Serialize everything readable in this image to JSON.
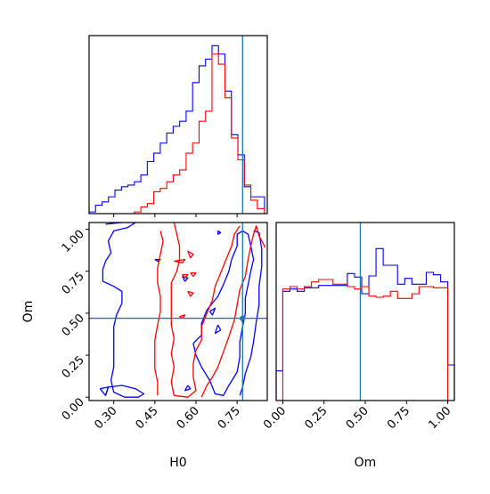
{
  "chart_data": [
    {
      "panel": "H0 marginal",
      "type": "histogram",
      "xlabel": "",
      "ylabel": "",
      "xlim": [
        0.21,
        0.86
      ],
      "ylim": [
        0,
        1.06
      ],
      "truth_x": 0.77,
      "bin_edges": [
        0.21,
        0.2336,
        0.2572,
        0.2808,
        0.3044,
        0.328,
        0.3516,
        0.3752,
        0.3988,
        0.4224,
        0.446,
        0.4696,
        0.4932,
        0.5168,
        0.5404,
        0.564,
        0.5876,
        0.6112,
        0.6348,
        0.6584,
        0.682,
        0.7056,
        0.7292,
        0.7528,
        0.7764,
        0.8,
        0.8236,
        0.85
      ],
      "series": [
        {
          "color": "#0000ff",
          "values": [
            0.01,
            0.05,
            0.07,
            0.1,
            0.14,
            0.16,
            0.17,
            0.19,
            0.23,
            0.31,
            0.36,
            0.42,
            0.48,
            0.52,
            0.55,
            0.61,
            0.78,
            0.88,
            0.92,
            1.0,
            0.95,
            0.73,
            0.47,
            0.35,
            0.16,
            0.1,
            0.1
          ]
        },
        {
          "color": "#ff0000",
          "values": [
            0,
            0,
            0,
            0,
            0,
            0,
            0,
            0.01,
            0.04,
            0.06,
            0.13,
            0.15,
            0.19,
            0.23,
            0.26,
            0.36,
            0.42,
            0.55,
            0.61,
            0.95,
            0.89,
            0.69,
            0.45,
            0.32,
            0.17,
            0.08,
            0.03
          ]
        }
      ]
    },
    {
      "panel": "H0 vs Om contour",
      "type": "contour",
      "xlabel": "H0",
      "ylabel": "Om",
      "xlim": [
        0.21,
        0.86
      ],
      "ylim": [
        -0.02,
        1.04
      ],
      "truth_x": 0.77,
      "truth_y": 0.47,
      "x_ticks": [
        "0.30",
        "0.45",
        "0.60",
        "0.75"
      ],
      "x_tick_values": [
        0.3,
        0.45,
        0.6,
        0.75
      ],
      "y_ticks": [
        "0.00",
        "0.25",
        "0.50",
        "0.75",
        "1.00"
      ],
      "y_tick_values": [
        0.0,
        0.25,
        0.5,
        0.75,
        1.0
      ],
      "series": [
        {
          "color": "#0000ff",
          "contours": [
            [
              [
                0.27,
                1.03
              ],
              [
                0.33,
                1.04
              ],
              [
                0.38,
                1.04
              ],
              [
                0.35,
                1.01
              ],
              [
                0.3,
                0.99
              ],
              [
                0.28,
                0.93
              ],
              [
                0.29,
                0.86
              ],
              [
                0.27,
                0.81
              ],
              [
                0.26,
                0.76
              ],
              [
                0.26,
                0.69
              ],
              [
                0.3,
                0.66
              ],
              [
                0.33,
                0.63
              ],
              [
                0.33,
                0.56
              ],
              [
                0.31,
                0.49
              ],
              [
                0.3,
                0.42
              ],
              [
                0.3,
                0.34
              ],
              [
                0.3,
                0.26
              ],
              [
                0.3,
                0.18
              ],
              [
                0.29,
                0.1
              ],
              [
                0.3,
                0.03
              ],
              [
                0.34,
                0.0
              ],
              [
                0.39,
                0.0
              ],
              [
                0.41,
                0.02
              ],
              [
                0.38,
                0.05
              ],
              [
                0.33,
                0.07
              ],
              [
                0.28,
                0.06
              ],
              [
                0.27,
                0.01
              ]
            ],
            [
              [
                0.25,
                0.05
              ],
              [
                0.28,
                0.06
              ],
              [
                0.27,
                0.01
              ],
              [
                0.25,
                0.05
              ]
            ],
            [
              [
                0.59,
                0.32
              ],
              [
                0.62,
                0.37
              ],
              [
                0.62,
                0.44
              ],
              [
                0.64,
                0.52
              ],
              [
                0.68,
                0.6
              ],
              [
                0.7,
                0.67
              ],
              [
                0.72,
                0.75
              ],
              [
                0.73,
                0.82
              ],
              [
                0.75,
                0.9
              ],
              [
                0.75,
                0.97
              ],
              [
                0.77,
                0.99
              ],
              [
                0.79,
                0.97
              ],
              [
                0.8,
                0.9
              ],
              [
                0.81,
                0.82
              ],
              [
                0.8,
                0.75
              ],
              [
                0.79,
                0.67
              ],
              [
                0.78,
                0.59
              ],
              [
                0.78,
                0.5
              ],
              [
                0.77,
                0.42
              ],
              [
                0.76,
                0.33
              ],
              [
                0.76,
                0.24
              ],
              [
                0.75,
                0.15
              ],
              [
                0.72,
                0.07
              ],
              [
                0.7,
                0.01
              ],
              [
                0.67,
                0.02
              ],
              [
                0.65,
                0.1
              ],
              [
                0.62,
                0.18
              ],
              [
                0.6,
                0.25
              ],
              [
                0.59,
                0.32
              ]
            ],
            [
              [
                0.81,
                0.99
              ],
              [
                0.83,
                0.98
              ],
              [
                0.84,
                0.88
              ],
              [
                0.84,
                0.78
              ],
              [
                0.83,
                0.66
              ],
              [
                0.83,
                0.55
              ],
              [
                0.82,
                0.45
              ],
              [
                0.81,
                0.33
              ],
              [
                0.8,
                0.24
              ],
              [
                0.78,
                0.14
              ],
              [
                0.77,
                0.06
              ],
              [
                0.76,
                0.01
              ]
            ],
            [
              [
                0.65,
                0.51
              ],
              [
                0.67,
                0.53
              ],
              [
                0.66,
                0.49
              ],
              [
                0.65,
                0.51
              ]
            ],
            [
              [
                0.76,
                0.47
              ],
              [
                0.77,
                0.48
              ],
              [
                0.77,
                0.45
              ],
              [
                0.76,
                0.47
              ]
            ],
            [
              [
                0.68,
                0.43
              ],
              [
                0.69,
                0.4
              ],
              [
                0.67,
                0.38
              ],
              [
                0.68,
                0.43
              ]
            ],
            [
              [
                0.55,
                0.72
              ],
              [
                0.57,
                0.71
              ],
              [
                0.56,
                0.69
              ],
              [
                0.55,
                0.72
              ]
            ],
            [
              [
                0.57,
                0.07
              ],
              [
                0.58,
                0.05
              ],
              [
                0.56,
                0.04
              ],
              [
                0.57,
                0.07
              ]
            ],
            [
              [
                0.68,
                0.99
              ],
              [
                0.69,
                0.98
              ],
              [
                0.68,
                0.97
              ],
              [
                0.68,
                0.99
              ]
            ],
            [
              [
                0.45,
                0.82
              ],
              [
                0.47,
                0.82
              ],
              [
                0.46,
                0.81
              ],
              [
                0.45,
                0.82
              ]
            ]
          ]
        },
        {
          "color": "#ff0000",
          "contours": [
            [
              [
                0.47,
                0.99
              ],
              [
                0.48,
                0.93
              ],
              [
                0.47,
                0.85
              ],
              [
                0.46,
                0.77
              ],
              [
                0.46,
                0.68
              ],
              [
                0.47,
                0.6
              ],
              [
                0.47,
                0.51
              ],
              [
                0.46,
                0.43
              ],
              [
                0.45,
                0.34
              ],
              [
                0.45,
                0.26
              ],
              [
                0.45,
                0.17
              ],
              [
                0.46,
                0.09
              ],
              [
                0.46,
                0.01
              ]
            ],
            [
              [
                0.52,
                1.04
              ],
              [
                0.53,
                0.97
              ],
              [
                0.54,
                0.9
              ],
              [
                0.54,
                0.82
              ],
              [
                0.53,
                0.75
              ],
              [
                0.51,
                0.68
              ],
              [
                0.51,
                0.6
              ],
              [
                0.51,
                0.51
              ],
              [
                0.51,
                0.43
              ],
              [
                0.52,
                0.35
              ],
              [
                0.51,
                0.26
              ],
              [
                0.52,
                0.18
              ],
              [
                0.51,
                0.09
              ],
              [
                0.52,
                0.01
              ],
              [
                0.57,
                0.0
              ],
              [
                0.6,
                0.04
              ],
              [
                0.59,
                0.12
              ],
              [
                0.59,
                0.2
              ],
              [
                0.6,
                0.28
              ],
              [
                0.62,
                0.34
              ],
              [
                0.62,
                0.42
              ],
              [
                0.64,
                0.5
              ],
              [
                0.66,
                0.58
              ],
              [
                0.67,
                0.66
              ],
              [
                0.69,
                0.74
              ],
              [
                0.71,
                0.82
              ],
              [
                0.73,
                0.9
              ],
              [
                0.74,
                0.97
              ],
              [
                0.76,
                1.02
              ]
            ],
            [
              [
                0.62,
                0.0
              ],
              [
                0.64,
                0.07
              ],
              [
                0.66,
                0.12
              ],
              [
                0.68,
                0.18
              ],
              [
                0.7,
                0.27
              ],
              [
                0.72,
                0.36
              ],
              [
                0.74,
                0.46
              ],
              [
                0.75,
                0.55
              ],
              [
                0.76,
                0.64
              ],
              [
                0.78,
                0.72
              ],
              [
                0.79,
                0.82
              ],
              [
                0.8,
                0.9
              ],
              [
                0.81,
                0.97
              ],
              [
                0.82,
                1.02
              ],
              [
                0.83,
                0.96
              ],
              [
                0.85,
                0.9
              ],
              [
                0.85,
                0.89
              ]
            ],
            [
              [
                0.57,
                0.87
              ],
              [
                0.59,
                0.85
              ],
              [
                0.58,
                0.83
              ],
              [
                0.57,
                0.87
              ]
            ],
            [
              [
                0.55,
                0.73
              ],
              [
                0.57,
                0.73
              ],
              [
                0.56,
                0.71
              ],
              [
                0.55,
                0.73
              ]
            ],
            [
              [
                0.57,
                0.63
              ],
              [
                0.59,
                0.62
              ],
              [
                0.58,
                0.6
              ],
              [
                0.57,
                0.63
              ]
            ],
            [
              [
                0.54,
                0.48
              ],
              [
                0.56,
                0.49
              ],
              [
                0.55,
                0.47
              ],
              [
                0.54,
                0.48
              ]
            ],
            [
              [
                0.52,
                0.81
              ],
              [
                0.56,
                0.82
              ],
              [
                0.55,
                0.8
              ],
              [
                0.52,
                0.81
              ]
            ],
            [
              [
                0.58,
                0.74
              ],
              [
                0.6,
                0.74
              ],
              [
                0.59,
                0.72
              ],
              [
                0.58,
                0.74
              ]
            ]
          ]
        }
      ]
    },
    {
      "panel": "Om marginal",
      "type": "histogram",
      "xlabel": "Om",
      "ylabel": "",
      "xlim": [
        -0.04,
        1.04
      ],
      "ylim": [
        0,
        1.5
      ],
      "truth_x": 0.47,
      "x_ticks": [
        "0.00",
        "0.25",
        "0.50",
        "0.75",
        "1.00"
      ],
      "x_tick_values": [
        0.0,
        0.25,
        0.5,
        0.75,
        1.0
      ],
      "bin_edges": [
        -0.04,
        0.0,
        0.0435,
        0.087,
        0.1304,
        0.1739,
        0.2174,
        0.2609,
        0.3043,
        0.3478,
        0.3913,
        0.4348,
        0.4783,
        0.5217,
        0.5652,
        0.6087,
        0.6522,
        0.6957,
        0.7391,
        0.7826,
        0.8261,
        0.8696,
        0.913,
        0.9565,
        1.0,
        1.04
      ],
      "series": [
        {
          "color": "#0000ff",
          "values": [
            0.25,
            0.92,
            0.94,
            0.92,
            0.95,
            0.95,
            0.97,
            0.97,
            0.97,
            0.97,
            1.07,
            1.04,
            0.9,
            1.05,
            1.28,
            1.14,
            1.14,
            0.98,
            1.03,
            0.98,
            0.98,
            1.08,
            1.06,
            1.0,
            0.3
          ]
        },
        {
          "color": "#ff0000",
          "values": [
            0,
            0.94,
            0.96,
            0.94,
            0.96,
            1.0,
            1.02,
            1.02,
            0.98,
            0.98,
            0.96,
            0.94,
            0.96,
            0.88,
            0.87,
            0.88,
            0.92,
            0.86,
            0.86,
            0.9,
            0.96,
            0.96,
            0.95,
            0.95,
            0
          ]
        }
      ]
    }
  ]
}
